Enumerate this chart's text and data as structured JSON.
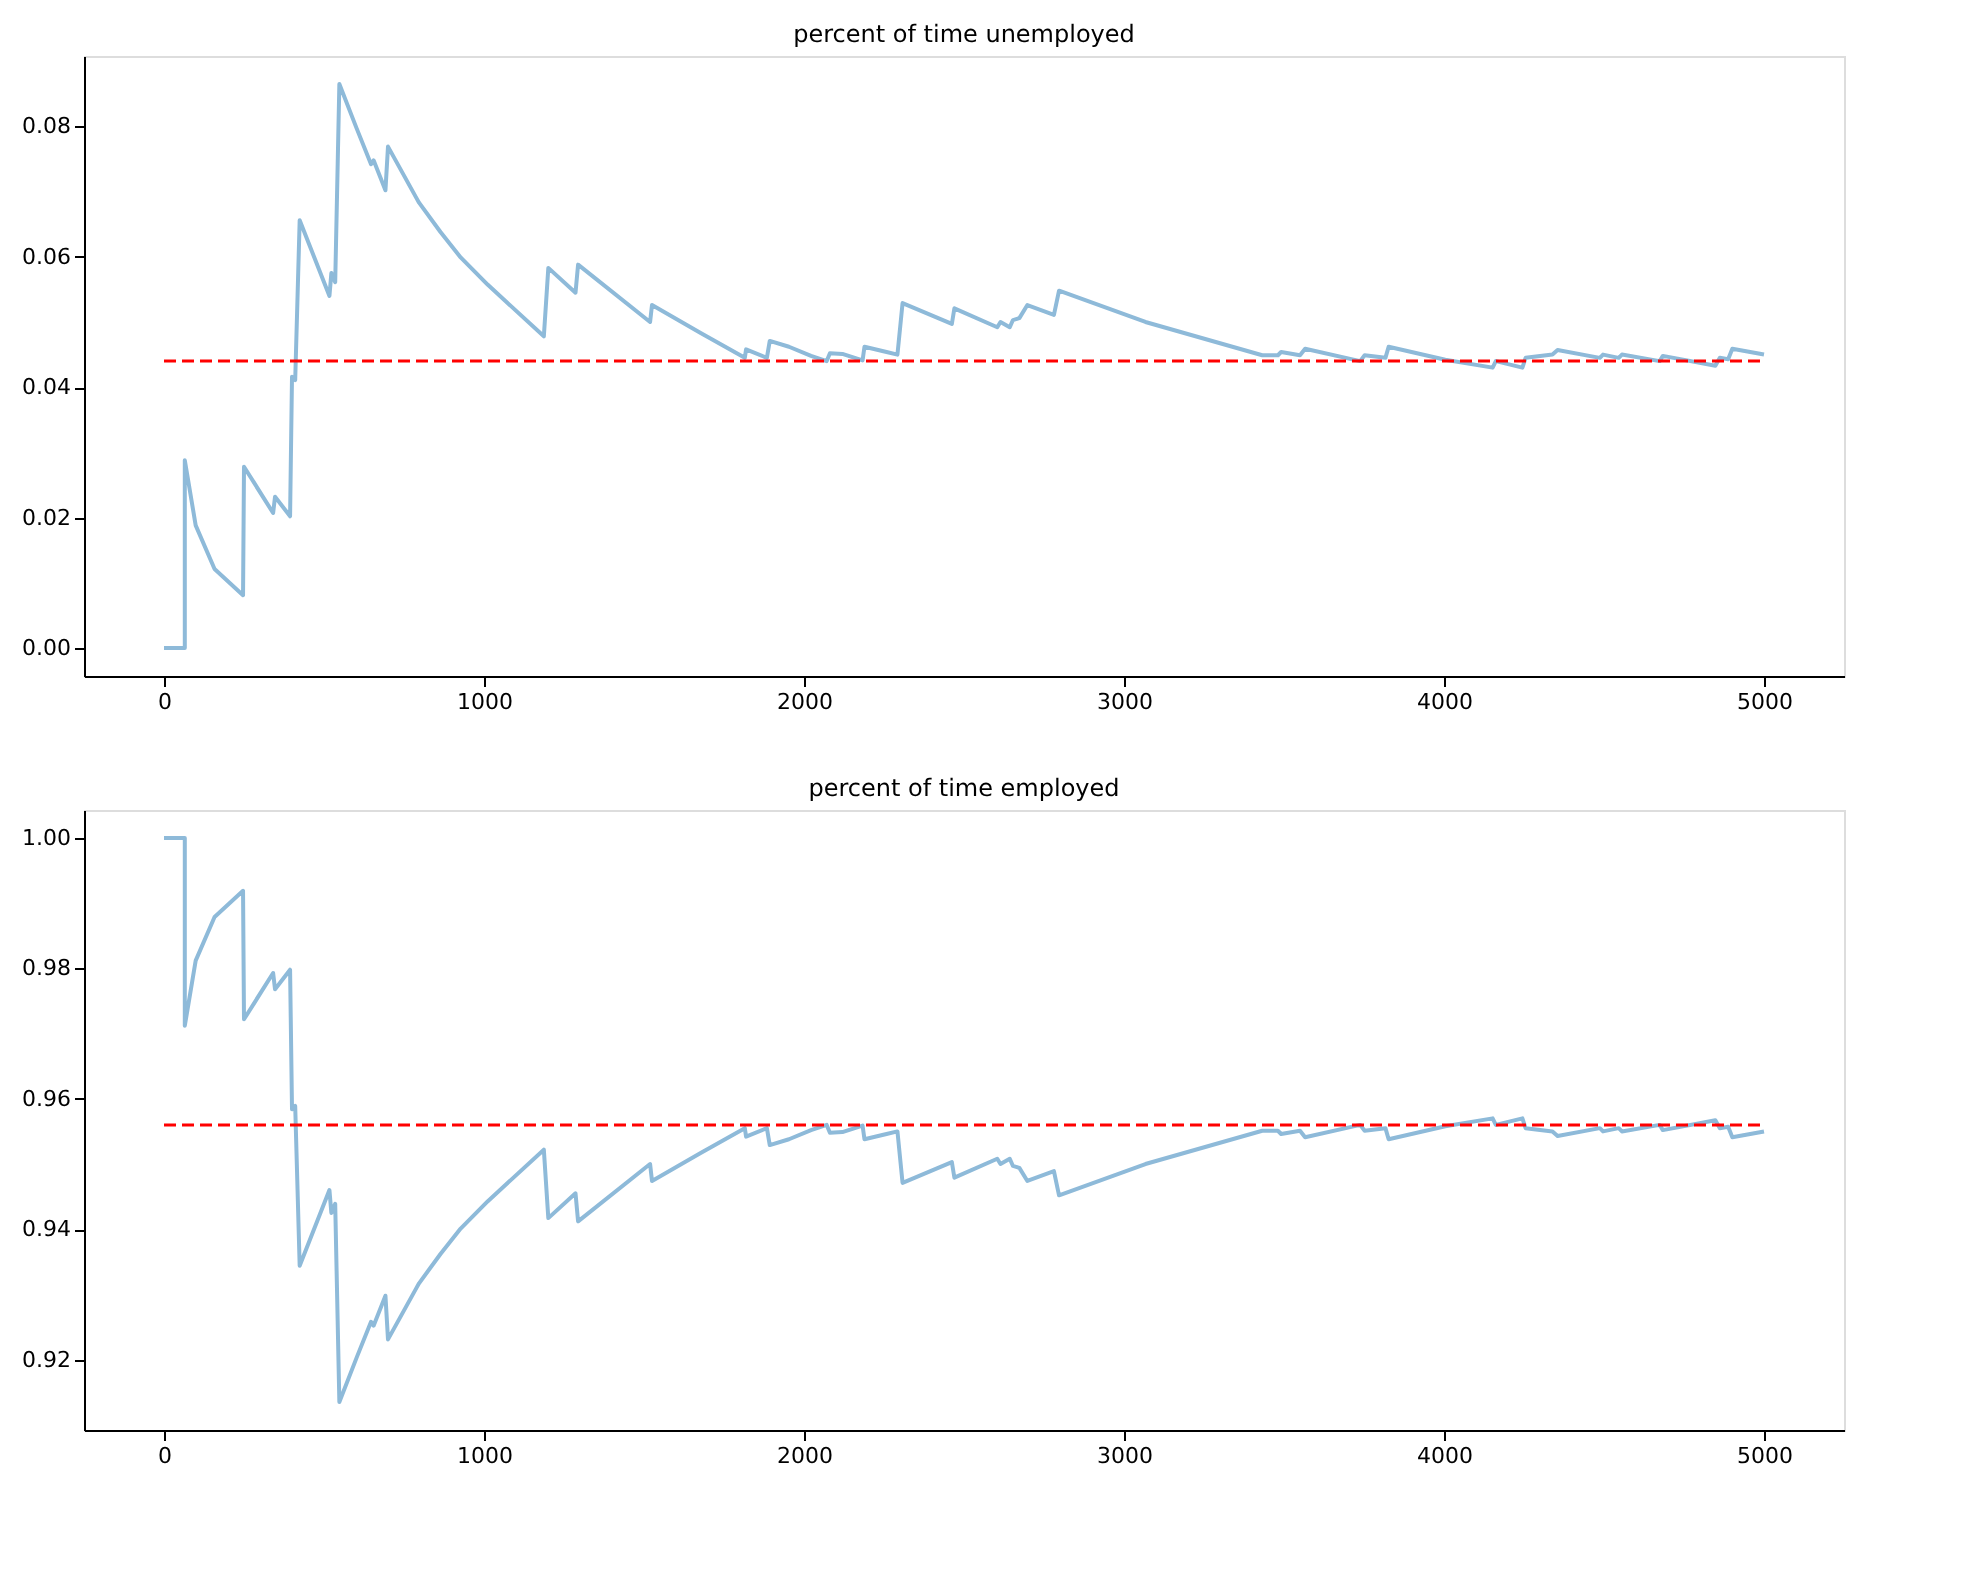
{
  "chart_data": [
    {
      "type": "line",
      "title": "percent of time unemployed",
      "x": [
        0,
        65,
        65,
        99,
        158,
        247,
        250,
        341,
        347,
        394,
        400,
        410,
        424,
        517,
        523,
        535,
        548,
        602,
        647,
        655,
        692,
        700,
        789,
        797,
        864,
        927,
        1012,
        1187,
        1201,
        1286,
        1294,
        1519,
        1525,
        1677,
        1815,
        1819,
        1884,
        1893,
        1953,
        2022,
        2071,
        2081,
        2120,
        2183,
        2189,
        2258,
        2292,
        2308,
        2462,
        2470,
        2604,
        2614,
        2643,
        2653,
        2673,
        2698,
        2781,
        2797,
        3067,
        3432,
        3481,
        3491,
        3550,
        3566,
        3738,
        3752,
        3817,
        3827,
        4004,
        4152,
        4162,
        4245,
        4255,
        4339,
        4355,
        4487,
        4497,
        4546,
        4556,
        4674,
        4684,
        4848,
        4862,
        4888,
        4901,
        5000
      ],
      "series": [
        {
          "color": "#8ebad9",
          "values": [
            0,
            0,
            0.0288,
            0.0188,
            0.0121,
            0.0081,
            0.0278,
            0.0207,
            0.0232,
            0.0202,
            0.0416,
            0.0411,
            0.0656,
            0.054,
            0.0575,
            0.0561,
            0.0865,
            0.0797,
            0.0742,
            0.0748,
            0.0702,
            0.0769,
            0.069,
            0.0683,
            0.0638,
            0.0599,
            0.0557,
            0.0478,
            0.0583,
            0.0545,
            0.0588,
            0.05,
            0.0526,
            0.0483,
            0.0445,
            0.0458,
            0.0445,
            0.0471,
            0.0462,
            0.0448,
            0.044,
            0.0452,
            0.0451,
            0.0441,
            0.0462,
            0.0454,
            0.045,
            0.0529,
            0.0497,
            0.0521,
            0.0492,
            0.05,
            0.0492,
            0.0503,
            0.0506,
            0.0526,
            0.0511,
            0.0548,
            0.05,
            0.0449,
            0.0449,
            0.0454,
            0.0449,
            0.0459,
            0.044,
            0.0449,
            0.0445,
            0.0462,
            0.0442,
            0.043,
            0.044,
            0.043,
            0.0445,
            0.045,
            0.0457,
            0.0445,
            0.045,
            0.0445,
            0.045,
            0.044,
            0.0448,
            0.0433,
            0.0445,
            0.0443,
            0.0459,
            0.045
          ]
        }
      ],
      "xlim": [
        -250,
        5250
      ],
      "xticks": [
        0,
        1000,
        2000,
        3000,
        4000,
        5000
      ],
      "ylim": [
        -0.0043,
        0.0908
      ],
      "yticks": [
        {
          "value": 0,
          "label": "0.00"
        },
        {
          "value": 0.02,
          "label": "0.02"
        },
        {
          "value": 0.04,
          "label": "0.04"
        },
        {
          "value": 0.06,
          "label": "0.06"
        },
        {
          "value": 0.08,
          "label": "0.08"
        }
      ],
      "ref_lines": [
        {
          "axis": "y",
          "value": 0.044,
          "color": "#ff0000",
          "line_style": "dashed"
        }
      ],
      "grid": false,
      "line_style": "solid"
    },
    {
      "type": "line",
      "title": "percent of time employed",
      "x": [
        0,
        65,
        65,
        99,
        158,
        247,
        250,
        341,
        347,
        394,
        400,
        410,
        424,
        517,
        523,
        535,
        548,
        602,
        647,
        655,
        692,
        700,
        789,
        797,
        864,
        927,
        1012,
        1187,
        1201,
        1286,
        1294,
        1519,
        1525,
        1677,
        1815,
        1819,
        1884,
        1893,
        1953,
        2022,
        2071,
        2081,
        2120,
        2183,
        2189,
        2258,
        2292,
        2308,
        2462,
        2470,
        2604,
        2614,
        2643,
        2653,
        2673,
        2698,
        2781,
        2797,
        3067,
        3432,
        3481,
        3491,
        3550,
        3566,
        3738,
        3752,
        3817,
        3827,
        4004,
        4152,
        4162,
        4245,
        4255,
        4339,
        4355,
        4487,
        4497,
        4546,
        4556,
        4674,
        4684,
        4848,
        4862,
        4888,
        4901,
        5000
      ],
      "series": [
        {
          "color": "#8ebad9",
          "values": [
            1,
            1,
            0.9712,
            0.9812,
            0.9879,
            0.9919,
            0.9722,
            0.9793,
            0.9768,
            0.9798,
            0.9584,
            0.9589,
            0.9344,
            0.946,
            0.9425,
            0.9439,
            0.9135,
            0.9203,
            0.9258,
            0.9252,
            0.9298,
            0.9231,
            0.931,
            0.9317,
            0.9362,
            0.9401,
            0.9443,
            0.9522,
            0.9417,
            0.9455,
            0.9412,
            0.95,
            0.9474,
            0.9517,
            0.9555,
            0.9542,
            0.9555,
            0.9529,
            0.9538,
            0.9552,
            0.956,
            0.9548,
            0.9549,
            0.9559,
            0.9538,
            0.9546,
            0.955,
            0.9471,
            0.9503,
            0.9479,
            0.9508,
            0.95,
            0.9508,
            0.9497,
            0.9494,
            0.9474,
            0.9489,
            0.9452,
            0.95,
            0.9551,
            0.9551,
            0.9546,
            0.9551,
            0.9541,
            0.956,
            0.9551,
            0.9555,
            0.9538,
            0.9558,
            0.957,
            0.956,
            0.957,
            0.9555,
            0.955,
            0.9543,
            0.9555,
            0.955,
            0.9555,
            0.955,
            0.956,
            0.9552,
            0.9567,
            0.9555,
            0.9557,
            0.9541,
            0.955
          ]
        }
      ],
      "xlim": [
        -250,
        5250
      ],
      "xticks": [
        0,
        1000,
        2000,
        3000,
        4000,
        5000
      ],
      "ylim": [
        0.9092,
        1.0043
      ],
      "yticks": [
        {
          "value": 0.92,
          "label": "0.92"
        },
        {
          "value": 0.94,
          "label": "0.94"
        },
        {
          "value": 0.96,
          "label": "0.96"
        },
        {
          "value": 0.98,
          "label": "0.98"
        },
        {
          "value": 1,
          "label": "1.00"
        }
      ],
      "ref_lines": [
        {
          "axis": "y",
          "value": 0.956,
          "color": "#ff0000",
          "line_style": "dashed"
        }
      ],
      "grid": false,
      "line_style": "solid"
    }
  ]
}
